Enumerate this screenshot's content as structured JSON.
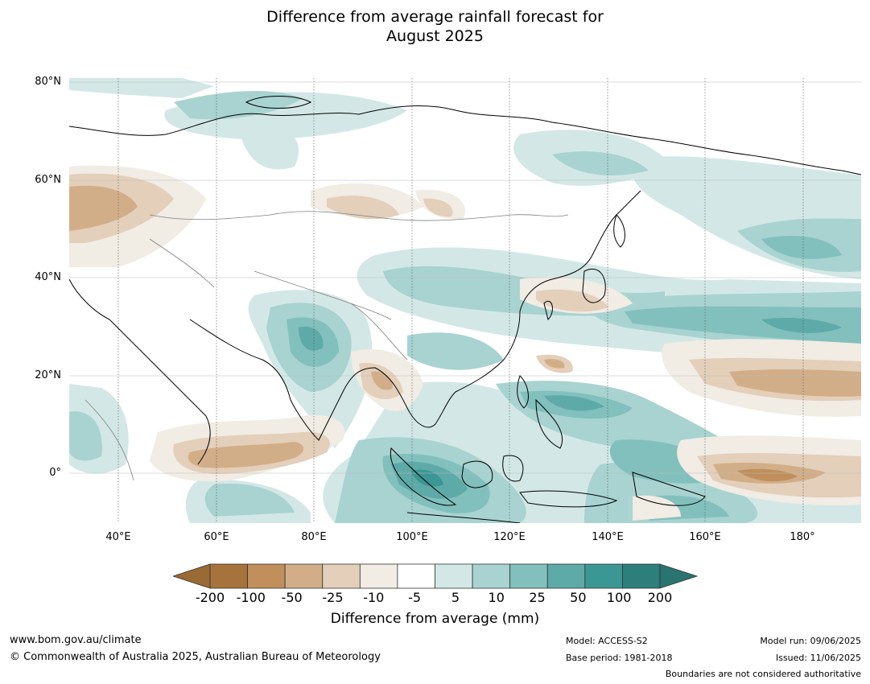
{
  "title": {
    "line1": "Difference from average rainfall forecast for",
    "line2": "August 2025"
  },
  "map": {
    "lat_labels": [
      "80°N",
      "60°N",
      "40°N",
      "20°N",
      "0°"
    ],
    "lon_labels": [
      "40°E",
      "60°E",
      "80°E",
      "100°E",
      "120°E",
      "140°E",
      "160°E",
      "180°"
    ],
    "extent": {
      "lon": [
        30,
        192
      ],
      "lat": [
        -10,
        80
      ]
    }
  },
  "legend": {
    "title": "Difference from average (mm)",
    "labels": [
      "-200",
      "-100",
      "-50",
      "-25",
      "-10",
      "-5",
      "5",
      "10",
      "25",
      "50",
      "100",
      "200"
    ],
    "colors": [
      "#a6733d",
      "#c08f5c",
      "#d2ae88",
      "#e3cfba",
      "#f1ece4",
      "#ffffff",
      "#d3e8e6",
      "#a8d3d1",
      "#82c0bd",
      "#5eaaa8",
      "#3a9794",
      "#2d7f7b"
    ],
    "under_color": "#9a6a34",
    "over_color": "#2a7470"
  },
  "footer": {
    "url": "www.bom.gov.au/climate",
    "copyright": "© Commonwealth of Australia 2025, Australian Bureau of Meteorology",
    "model": "Model: ACCESS-S2",
    "base_period": "Base period: 1981-2018",
    "model_run": "Model run: 09/06/2025",
    "issued": "Issued: 11/06/2025",
    "disclaimer": "Boundaries are not considered authoritative"
  }
}
